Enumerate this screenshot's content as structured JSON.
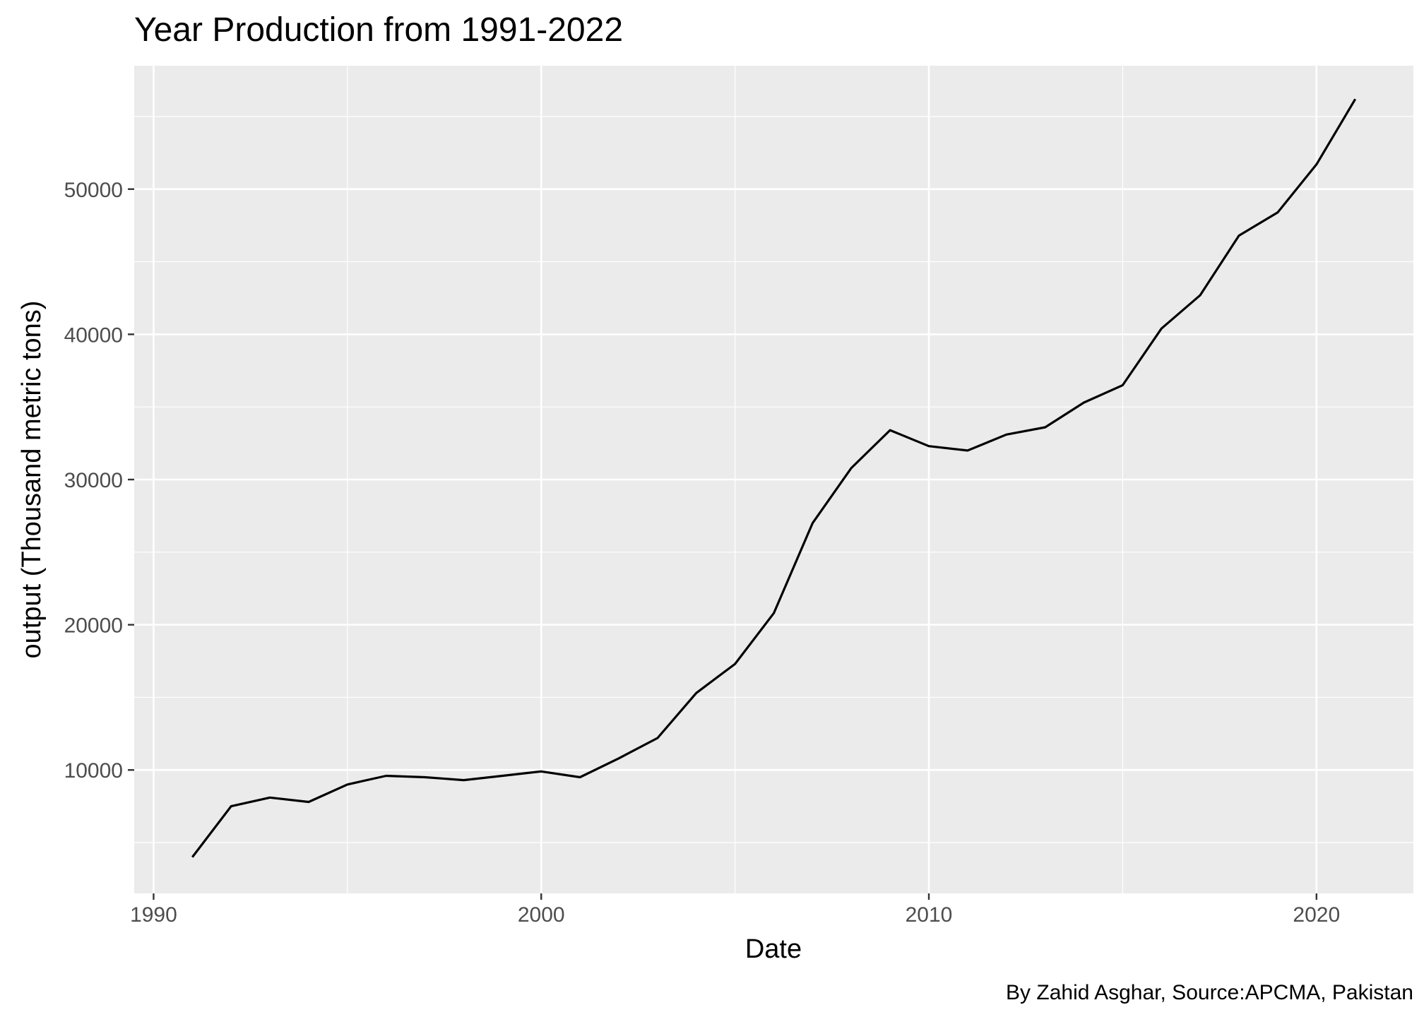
{
  "chart_data": {
    "type": "line",
    "title": "Year Production from 1991-2022",
    "xlabel": "Date",
    "ylabel": "output (Thousand metric tons)",
    "caption": "By Zahid Asghar, Source:APCMA, Pakistan",
    "xlim": [
      1989.5,
      2022.5
    ],
    "ylim": [
      1500,
      58500
    ],
    "x_ticks": [
      1990,
      2000,
      2010,
      2020
    ],
    "y_ticks": [
      10000,
      20000,
      30000,
      40000,
      50000
    ],
    "grid": true,
    "colors": {
      "panel": "#ebebeb",
      "grid": "#ffffff",
      "line": "#000000"
    },
    "series": [
      {
        "x": [
          1991,
          1992,
          1993,
          1994,
          1995,
          1996,
          1997,
          1998,
          1999,
          2000,
          2001,
          2002,
          2003,
          2004,
          2005,
          2006,
          2007,
          2008,
          2009,
          2010,
          2011,
          2012,
          2013,
          2014,
          2015,
          2016,
          2017,
          2018,
          2019,
          2020,
          2021
        ],
        "y": [
          4000,
          7500,
          8100,
          7800,
          9000,
          9600,
          9500,
          9300,
          9600,
          9900,
          9500,
          10800,
          12200,
          15300,
          17300,
          20800,
          27000,
          30800,
          33400,
          32300,
          32000,
          33100,
          33600,
          35300,
          36500,
          40400,
          42700,
          46800,
          48400,
          51700,
          56200
        ]
      }
    ]
  }
}
